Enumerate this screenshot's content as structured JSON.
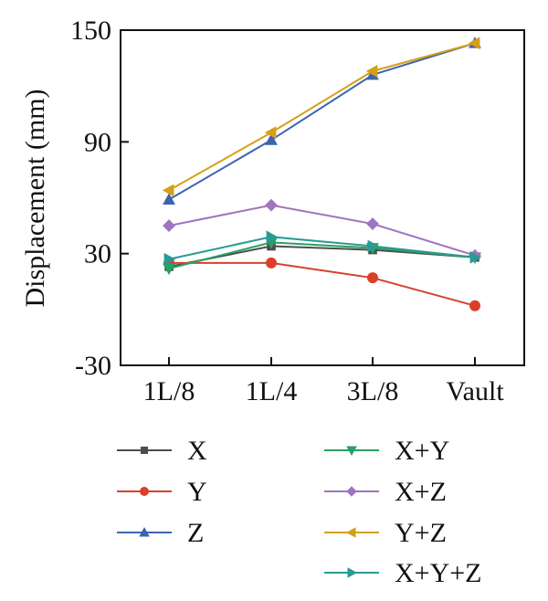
{
  "chart_data": {
    "type": "line",
    "categories": [
      "1L/8",
      "1L/4",
      "3L/8",
      "Vault"
    ],
    "ylabel": "Displacement (mm)",
    "xlabel": "",
    "ylim": [
      -30,
      150
    ],
    "yticks": [
      "-30",
      "30",
      "90",
      "150"
    ],
    "grid": false,
    "legend_position": "bottom",
    "series": [
      {
        "name": "X",
        "values": [
          23,
          34,
          32,
          28
        ],
        "color": "#4d4d4d",
        "marker": "square"
      },
      {
        "name": "Y",
        "values": [
          25,
          25,
          17,
          2
        ],
        "color": "#d9402b",
        "marker": "circle"
      },
      {
        "name": "Z",
        "values": [
          59,
          91,
          126,
          143
        ],
        "color": "#3e64b0",
        "marker": "triangle-up"
      },
      {
        "name": "X+Y",
        "values": [
          22,
          36,
          33,
          28
        ],
        "color": "#28a060",
        "marker": "triangle-down"
      },
      {
        "name": "X+Z",
        "values": [
          45,
          56,
          46,
          29
        ],
        "color": "#9f74c0",
        "marker": "diamond"
      },
      {
        "name": "Y+Z",
        "values": [
          64,
          95,
          128,
          143
        ],
        "color": "#d4a017",
        "marker": "triangle-left"
      },
      {
        "name": "X+Y+Z",
        "values": [
          27,
          39,
          34,
          28
        ],
        "color": "#2a9a95",
        "marker": "triangle-right"
      }
    ]
  }
}
